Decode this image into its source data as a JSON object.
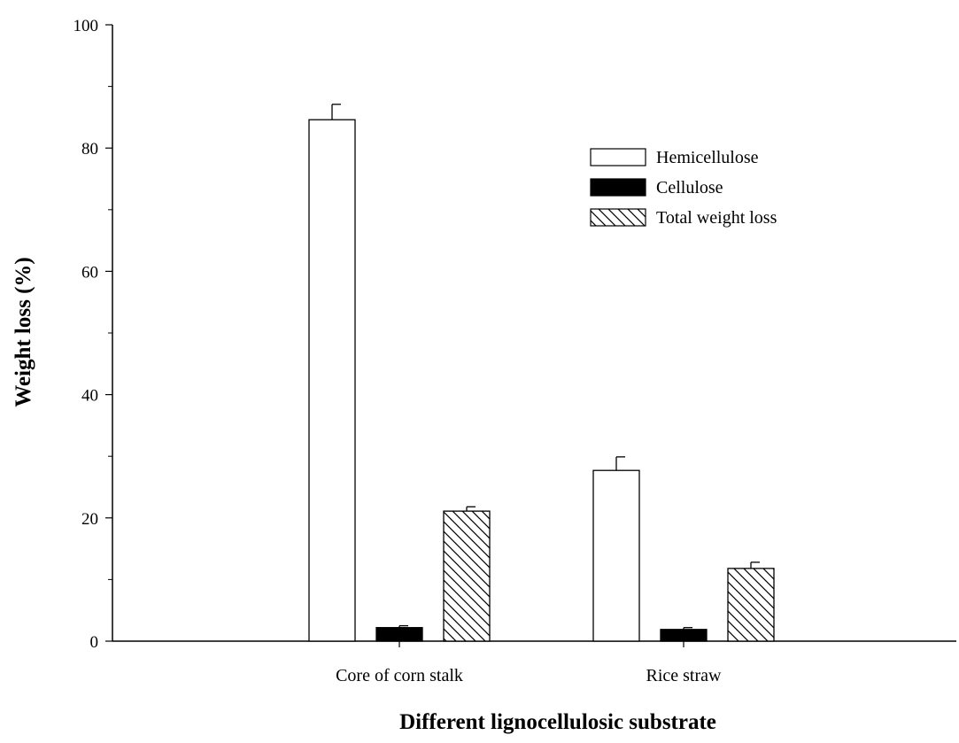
{
  "chart_data": {
    "type": "bar",
    "categories": [
      "Core of corn stalk",
      "Rice straw"
    ],
    "series": [
      {
        "name": "Hemicellulose",
        "values": [
          84.6,
          27.7
        ],
        "errors": [
          2.5,
          2.2
        ],
        "fill": "#ffffff",
        "pattern": "none"
      },
      {
        "name": "Cellulose",
        "values": [
          2.2,
          1.9
        ],
        "errors": [
          0.3,
          0.3
        ],
        "fill": "#000000",
        "pattern": "solid"
      },
      {
        "name": "Total weight loss",
        "values": [
          21.1,
          11.8
        ],
        "errors": [
          0.7,
          1.0
        ],
        "fill": "#ffffff",
        "pattern": "diagonal-hatch"
      }
    ],
    "xlabel": "Different lignocellulosic substrate",
    "ylabel": "Weight loss (%)",
    "ylim": [
      0,
      100
    ],
    "yticks": [
      "0",
      "20",
      "40",
      "60",
      "80",
      "100"
    ],
    "error_bars": true,
    "grid": false,
    "legend_position": "top-right"
  }
}
